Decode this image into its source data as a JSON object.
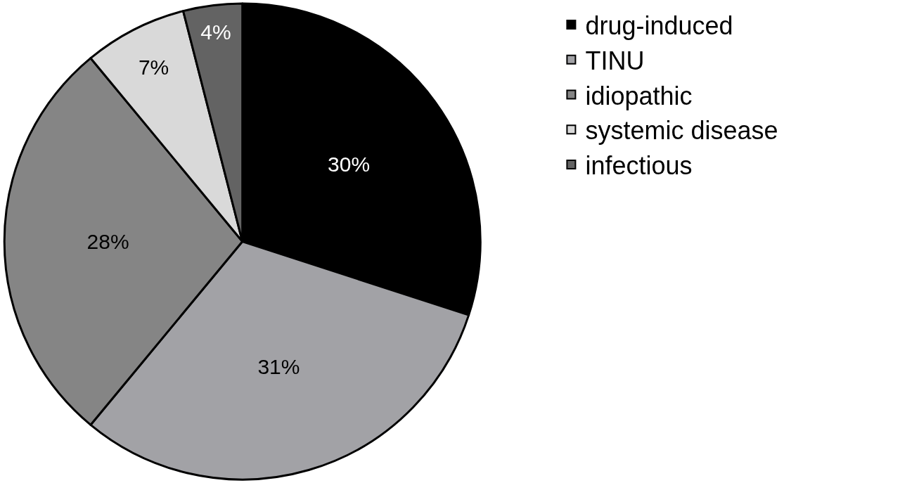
{
  "chart_data": {
    "type": "pie",
    "categories": [
      "drug-induced",
      "TINU",
      "idiopathic",
      "systemic disease",
      "infectious"
    ],
    "values": [
      30,
      31,
      28,
      7,
      4
    ],
    "colors": [
      "#000000",
      "#a2a2a6",
      "#858585",
      "#d9d9d9",
      "#636363"
    ],
    "value_labels": [
      "30%",
      "31%",
      "28%",
      "7%",
      "4%"
    ],
    "legend": "top right"
  }
}
